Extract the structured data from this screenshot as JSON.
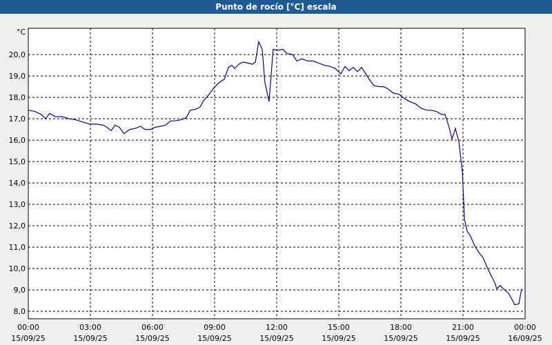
{
  "chart_data": {
    "type": "line",
    "title": "Punto de rocío [°C] escala",
    "y_unit": "°C",
    "x": [
      0,
      0.3,
      0.63,
      0.83,
      1.03,
      1.3,
      1.63,
      1.97,
      2.3,
      2.63,
      2.97,
      3.3,
      3.63,
      3.8,
      4,
      4.2,
      4.4,
      4.63,
      4.9,
      5.17,
      5.43,
      5.63,
      5.9,
      6.13,
      6.4,
      6.63,
      6.87,
      7.07,
      7.37,
      7.63,
      7.83,
      8.1,
      8.3,
      8.47,
      8.7,
      8.97,
      9.23,
      9.47,
      9.67,
      9.83,
      9.97,
      10.17,
      10.37,
      10.63,
      10.83,
      10.97,
      11.13,
      11.3,
      11.43,
      11.63,
      11.83,
      12.03,
      12.3,
      12.5,
      12.77,
      12.97,
      13.23,
      13.5,
      13.77,
      14.03,
      14.3,
      14.57,
      14.83,
      15.1,
      15.3,
      15.5,
      15.7,
      15.9,
      16.1,
      16.3,
      16.5,
      16.7,
      16.97,
      17.17,
      17.37,
      17.63,
      17.9,
      18.17,
      18.43,
      18.7,
      18.97,
      19.23,
      19.43,
      19.7,
      19.97,
      20.13,
      20.33,
      20.47,
      20.63,
      20.8,
      20.97,
      21.07,
      21.2,
      21.37,
      21.57,
      21.77,
      21.97,
      22.17,
      22.37,
      22.53,
      22.63,
      22.8,
      23,
      23.2,
      23.37,
      23.5,
      23.7,
      23.83
    ],
    "series": [
      {
        "name": "Punto de rocío",
        "color": "#0000a0",
        "values": [
          17.4,
          17.35,
          17.2,
          17.0,
          17.25,
          17.1,
          17.1,
          17.0,
          16.95,
          16.85,
          16.75,
          16.75,
          16.7,
          16.6,
          16.45,
          16.7,
          16.6,
          16.3,
          16.5,
          16.55,
          16.65,
          16.5,
          16.5,
          16.6,
          16.65,
          16.7,
          16.9,
          16.9,
          16.95,
          17.05,
          17.4,
          17.45,
          17.55,
          17.85,
          18.1,
          18.45,
          18.7,
          18.85,
          19.4,
          19.5,
          19.35,
          19.55,
          19.65,
          19.6,
          19.55,
          19.65,
          20.6,
          20.25,
          18.7,
          17.8,
          20.25,
          20.2,
          20.25,
          20.05,
          20.0,
          19.7,
          19.8,
          19.7,
          19.7,
          19.6,
          19.5,
          19.45,
          19.35,
          19.1,
          19.45,
          19.25,
          19.4,
          19.2,
          19.4,
          19.1,
          18.8,
          18.55,
          18.5,
          18.5,
          18.4,
          18.2,
          18.15,
          17.95,
          17.8,
          17.7,
          17.5,
          17.4,
          17.4,
          17.35,
          17.2,
          17.2,
          16.6,
          16.05,
          16.55,
          15.95,
          14.5,
          12.3,
          11.75,
          11.5,
          11.05,
          10.75,
          10.5,
          10.05,
          9.65,
          9.35,
          9.05,
          9.2,
          9.0,
          8.85,
          8.55,
          8.3,
          8.35,
          9.05
        ]
      }
    ],
    "xlim": [
      0,
      24
    ],
    "xticks": [
      {
        "value": 0,
        "label": "00:00 15/09/25"
      },
      {
        "value": 3,
        "label": "03:00 15/09/25"
      },
      {
        "value": 6,
        "label": "06:00 15/09/25"
      },
      {
        "value": 9,
        "label": "09:00 15/09/25"
      },
      {
        "value": 12,
        "label": "12:00 15/09/25"
      },
      {
        "value": 15,
        "label": "15:00 15/09/25"
      },
      {
        "value": 18,
        "label": "18:00 15/09/25"
      },
      {
        "value": 21,
        "label": "21:00 15/09/25"
      },
      {
        "value": 24,
        "label": "00:00 16/09/25"
      }
    ],
    "ylim": [
      7.65,
      21.23
    ],
    "yticks": [
      {
        "value": 8,
        "label": "8,0"
      },
      {
        "value": 9,
        "label": "9,0"
      },
      {
        "value": 10,
        "label": "10,0"
      },
      {
        "value": 11,
        "label": "11,0"
      },
      {
        "value": 12,
        "label": "12,0"
      },
      {
        "value": 13,
        "label": "13,0"
      },
      {
        "value": 14,
        "label": "14,0"
      },
      {
        "value": 15,
        "label": "15,0"
      },
      {
        "value": 16,
        "label": "16,0"
      },
      {
        "value": 17,
        "label": "17,0"
      },
      {
        "value": 18,
        "label": "18,0"
      },
      {
        "value": 19,
        "label": "19,0"
      },
      {
        "value": 20,
        "label": "20,0"
      }
    ],
    "grid": true
  }
}
